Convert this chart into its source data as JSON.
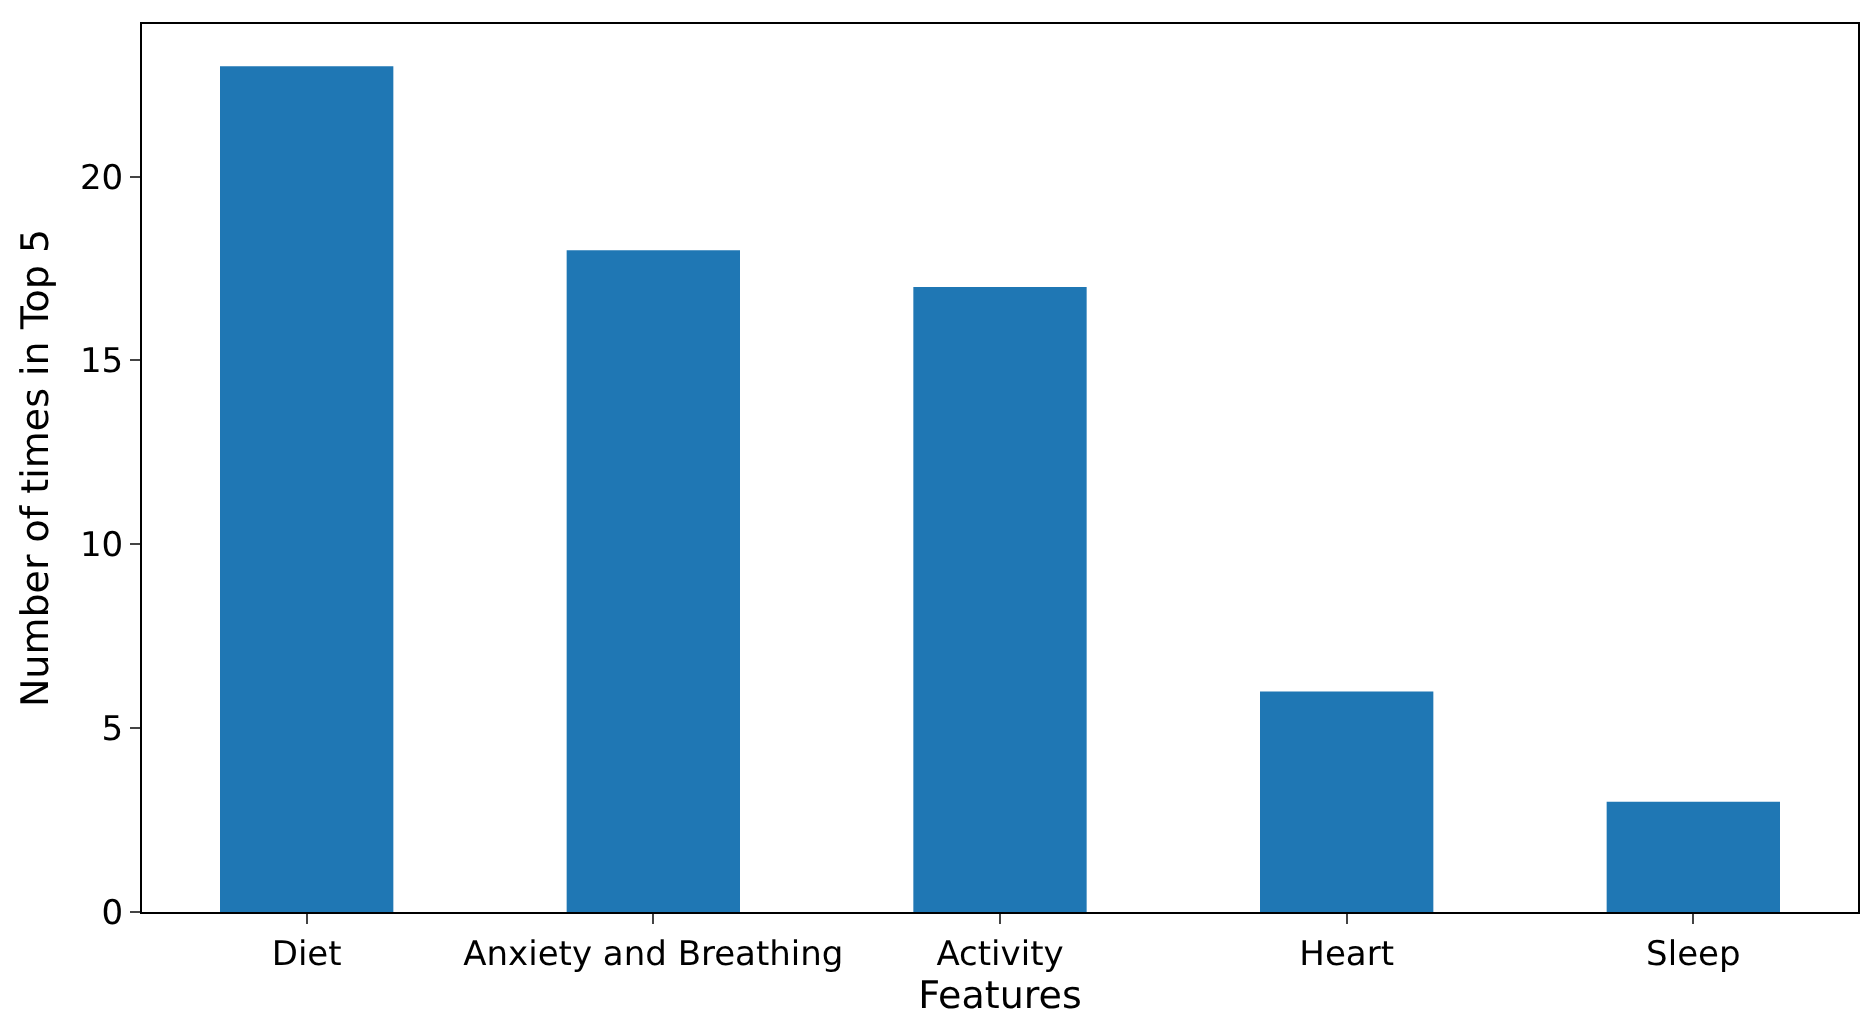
{
  "chart_data": {
    "type": "bar",
    "xlabel": "Features",
    "ylabel": "Number of times in Top 5",
    "categories": [
      "Diet",
      "Anxiety and Breathing",
      "Activity",
      "Heart",
      "Sleep"
    ],
    "values": [
      23,
      18,
      17,
      6,
      3
    ],
    "color": "#1f77b4",
    "ylim": [
      0,
      24.15
    ],
    "yticks": [
      0,
      5,
      10,
      15,
      20
    ]
  }
}
